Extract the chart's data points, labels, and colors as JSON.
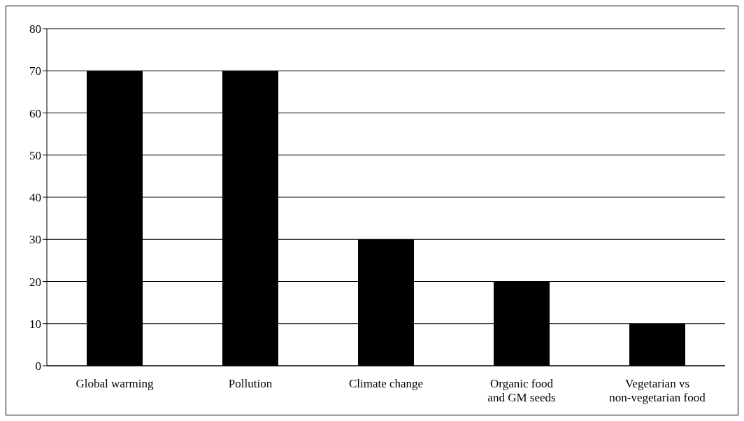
{
  "chart_data": {
    "type": "bar",
    "categories": [
      "Global warming",
      "Pollution",
      "Climate change",
      "Organic food and GM seeds",
      "Vegetarian vs non-vegetarian food"
    ],
    "values": [
      70,
      70,
      30,
      20,
      10
    ],
    "color": "#000000",
    "ylim": [
      0,
      80
    ],
    "yticks": [
      0,
      10,
      20,
      30,
      40,
      50,
      60,
      70,
      80
    ],
    "grid": "y",
    "legend": false
  }
}
